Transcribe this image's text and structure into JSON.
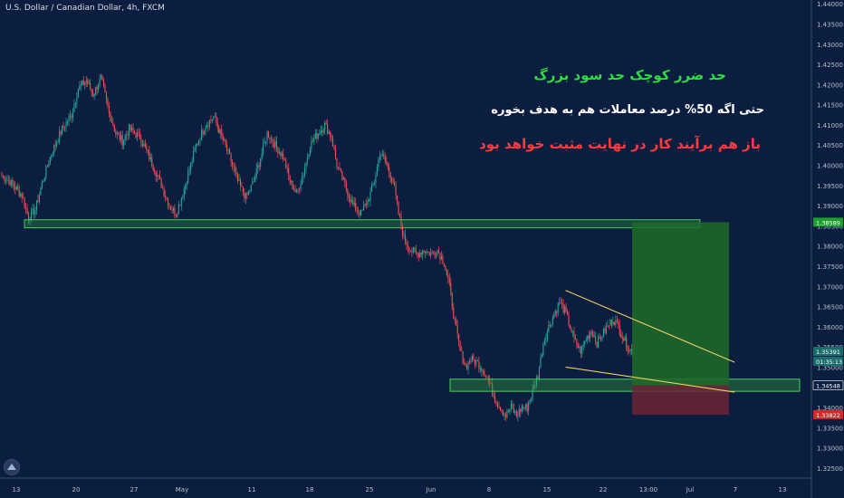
{
  "header": {
    "symbol": "U.S. Dollar / Canadian Dollar, 4h, FXCM"
  },
  "annotations": {
    "line1": "حد ضرر کوچک حد سود بزرگ",
    "line2": "حتی اگه 50% درصد معاملات هم به هدف بخوره",
    "line3": "باز هم برآیند کار در نهایت مثبت خواهد بود"
  },
  "colors": {
    "background": "#0c1e3f",
    "up_candle": "#26a69a",
    "down_candle": "#ef5350",
    "zone_fill": "#2e9e3f",
    "profit_fill": "#1f6b2a",
    "loss_fill": "#6b2536",
    "trendline": "#f0d060",
    "axis_text": "#b7bfcc",
    "green_tag": "#1e9e2e",
    "teal_tag": "#1a6d6a",
    "red_tag": "#d12a2a"
  },
  "chart_data": {
    "type": "candlestick",
    "title": "U.S. Dollar / Canadian Dollar, 4h, FXCM",
    "ylim": [
      1.3225,
      1.4405
    ],
    "y_ticks": [
      "1.44000",
      "1.43500",
      "1.43000",
      "1.42500",
      "1.42000",
      "1.41500",
      "1.41000",
      "1.40500",
      "1.40000",
      "1.39500",
      "1.39000",
      "1.38500",
      "1.38000",
      "1.37500",
      "1.37000",
      "1.36500",
      "1.36000",
      "1.35500",
      "1.35000",
      "1.34500",
      "1.34000",
      "1.33500",
      "1.33000",
      "1.32500"
    ],
    "x_ticks": [
      "13",
      "20",
      "27",
      "May",
      "11",
      "18",
      "25",
      "Jun",
      "8",
      "15",
      "22",
      "13:00",
      "Jul",
      "7",
      "13"
    ],
    "price_tags": [
      {
        "value": "1.38589",
        "color": "#1e9e2e"
      },
      {
        "value": "1.35391",
        "color": "#1a6d6a"
      },
      {
        "value": "01:35:13",
        "color": "#1a6d6a"
      },
      {
        "value": "1.34548",
        "color": "#0c1e3f"
      },
      {
        "value": "1.33822",
        "color": "#d12a2a"
      }
    ],
    "anchor_closes": [
      [
        0,
        1.3975
      ],
      [
        5,
        1.3962
      ],
      [
        10,
        1.3945
      ],
      [
        15,
        1.3925
      ],
      [
        20,
        1.387
      ],
      [
        25,
        1.389
      ],
      [
        30,
        1.3955
      ],
      [
        37,
        1.403
      ],
      [
        45,
        1.409
      ],
      [
        52,
        1.4125
      ],
      [
        57,
        1.419
      ],
      [
        63,
        1.421
      ],
      [
        68,
        1.4175
      ],
      [
        74,
        1.4215
      ],
      [
        80,
        1.413
      ],
      [
        85,
        1.408
      ],
      [
        90,
        1.406
      ],
      [
        95,
        1.409
      ],
      [
        103,
        1.407
      ],
      [
        110,
        1.402
      ],
      [
        118,
        1.396
      ],
      [
        125,
        1.39
      ],
      [
        130,
        1.388
      ],
      [
        135,
        1.393
      ],
      [
        140,
        1.399
      ],
      [
        145,
        1.405
      ],
      [
        152,
        1.41
      ],
      [
        158,
        1.412
      ],
      [
        163,
        1.408
      ],
      [
        170,
        1.402
      ],
      [
        176,
        1.396
      ],
      [
        182,
        1.392
      ],
      [
        188,
        1.396
      ],
      [
        194,
        1.403
      ],
      [
        198,
        1.408
      ],
      [
        205,
        1.4045
      ],
      [
        210,
        1.402
      ],
      [
        215,
        1.396
      ],
      [
        220,
        1.393
      ],
      [
        225,
        1.398
      ],
      [
        230,
        1.405
      ],
      [
        236,
        1.408
      ],
      [
        241,
        1.41
      ],
      [
        246,
        1.407
      ],
      [
        250,
        1.4
      ],
      [
        256,
        1.395
      ],
      [
        262,
        1.39
      ],
      [
        268,
        1.388
      ],
      [
        274,
        1.392
      ],
      [
        278,
        1.396
      ],
      [
        282,
        1.403
      ],
      [
        286,
        1.401
      ],
      [
        292,
        1.396
      ],
      [
        296,
        1.388
      ],
      [
        300,
        1.382
      ],
      [
        305,
        1.379
      ],
      [
        310,
        1.378
      ],
      [
        315,
        1.379
      ],
      [
        320,
        1.378
      ],
      [
        325,
        1.379
      ],
      [
        330,
        1.376
      ],
      [
        334,
        1.37
      ],
      [
        338,
        1.361
      ],
      [
        342,
        1.354
      ],
      [
        346,
        1.35
      ],
      [
        350,
        1.352
      ],
      [
        355,
        1.351
      ],
      [
        360,
        1.349
      ],
      [
        364,
        1.346
      ],
      [
        368,
        1.342
      ],
      [
        372,
        1.34
      ],
      [
        376,
        1.338
      ],
      [
        380,
        1.34
      ],
      [
        384,
        1.338
      ],
      [
        388,
        1.34
      ],
      [
        392,
        1.34
      ],
      [
        396,
        1.344
      ],
      [
        400,
        1.348
      ],
      [
        404,
        1.356
      ],
      [
        408,
        1.36
      ],
      [
        412,
        1.363
      ],
      [
        416,
        1.366
      ],
      [
        420,
        1.364
      ],
      [
        424,
        1.36
      ],
      [
        428,
        1.356
      ],
      [
        432,
        1.354
      ],
      [
        436,
        1.357
      ],
      [
        440,
        1.359
      ],
      [
        444,
        1.356
      ],
      [
        448,
        1.358
      ],
      [
        452,
        1.36
      ],
      [
        456,
        1.362
      ],
      [
        460,
        1.36
      ],
      [
        464,
        1.357
      ],
      [
        468,
        1.3545
      ],
      [
        471,
        1.3539
      ]
    ],
    "support_zone_upper": [
      1.3845,
      1.3865
    ],
    "support_zone_lower": [
      1.344,
      1.347
    ],
    "trade": {
      "entry": 1.3455,
      "target": 1.3859,
      "stop": 1.3382
    },
    "trendlines": [
      {
        "x1": 422,
        "y1": 1.369,
        "x2": 513,
        "y2": 1.3575
      },
      {
        "x1": 422,
        "y1": 1.35,
        "x2": 513,
        "y2": 1.346
      }
    ],
    "n_candles": 472
  }
}
